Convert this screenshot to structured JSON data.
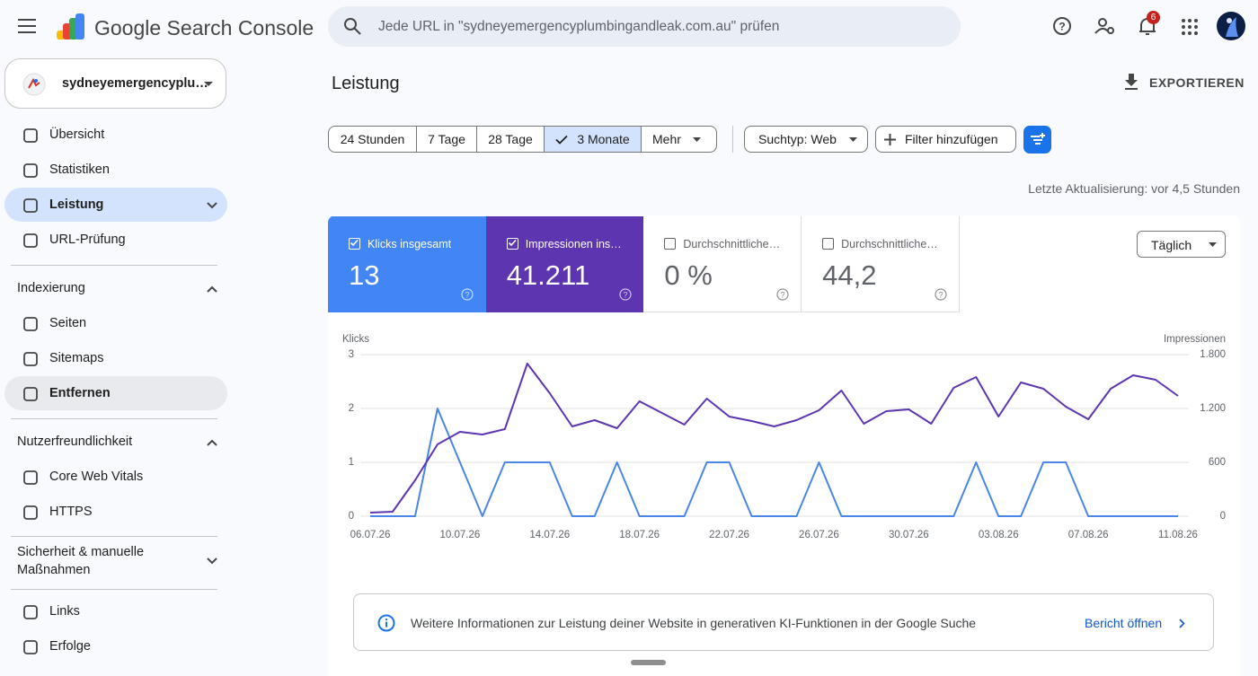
{
  "header": {
    "product": "Google Search Console",
    "search_placeholder": "Jede URL in \"sydneyemergencyplumbingandleak.com.au\" prüfen",
    "notification_count": "6"
  },
  "sidebar": {
    "property": "sydneyemergencyplu…",
    "top_items": [
      "Übersicht",
      "Statistiken",
      "Leistung",
      "URL-Prüfung"
    ],
    "sections": [
      {
        "title": "Indexierung",
        "items": [
          "Seiten",
          "Sitemaps",
          "Entfernen"
        ]
      },
      {
        "title": "Nutzerfreundlichkeit",
        "items": [
          "Core Web Vitals",
          "HTTPS"
        ]
      },
      {
        "title": "Sicherheit & manuelle Maßnahmen",
        "items": []
      }
    ],
    "bottom_items": [
      "Links",
      "Erfolge"
    ]
  },
  "page": {
    "title": "Leistung",
    "export": "EXPORTIEREN",
    "date_ranges": [
      "24 Stunden",
      "7 Tage",
      "28 Tage",
      "3 Monate",
      "Mehr"
    ],
    "search_type": "Suchtyp: Web",
    "add_filter": "Filter hinzufügen",
    "last_update": "Letzte Aktualisierung: vor 4,5 Stunden",
    "interval": "Täglich"
  },
  "metrics": [
    {
      "label": "Klicks insgesamt",
      "value": "13"
    },
    {
      "label": "Impressionen ins…",
      "value": "41.211"
    },
    {
      "label": "Durchschnittliche…",
      "value": "0 %"
    },
    {
      "label": "Durchschnittliche…",
      "value": "44,2"
    }
  ],
  "chart_data": {
    "type": "line",
    "ylabel": "Klicks",
    "y2label": "Impressionen",
    "categories": [
      "06.07.26",
      null,
      null,
      null,
      "10.07.26",
      null,
      null,
      null,
      "14.07.26",
      null,
      null,
      null,
      "18.07.26",
      null,
      null,
      null,
      "22.07.26",
      null,
      null,
      null,
      "26.07.26",
      null,
      null,
      null,
      "30.07.26",
      null,
      null,
      null,
      "03.08.26",
      null,
      null,
      null,
      "07.08.26",
      null,
      null,
      null,
      "11.08.26"
    ],
    "series": [
      {
        "color": "#4a86e8",
        "values": [
          0,
          0,
          0,
          2,
          1,
          0,
          1,
          1,
          1,
          0,
          0,
          1,
          0,
          0,
          0,
          1,
          1,
          0,
          0,
          0,
          1,
          0,
          0,
          0,
          0,
          0,
          0,
          1,
          0,
          0,
          1,
          1,
          0,
          0,
          0,
          0,
          0
        ]
      },
      {
        "color": "#5e35b1",
        "axis": "y2",
        "values": [
          40,
          50,
          400,
          800,
          940,
          910,
          970,
          1700,
          1370,
          1000,
          1070,
          980,
          1280,
          1150,
          1020,
          1310,
          1110,
          1060,
          1000,
          1070,
          1180,
          1400,
          1030,
          1170,
          1190,
          1030,
          1430,
          1550,
          1110,
          1490,
          1420,
          1220,
          1080,
          1420,
          1570,
          1520,
          1340
        ]
      }
    ],
    "ylim": [
      0,
      3
    ],
    "yticks": [
      0,
      1,
      2,
      3
    ],
    "y2lim": [
      0,
      1800
    ],
    "y2ticks": [
      0,
      600,
      {
        "value": 1200,
        "label": "1.200"
      },
      {
        "value": 1800,
        "label": "1.800"
      }
    ],
    "grid": true
  },
  "banner": {
    "text": "Weitere Informationen zur Leistung deiner Website in generativen KI-Funktionen in der Google Suche",
    "link": "Bericht öffnen"
  }
}
